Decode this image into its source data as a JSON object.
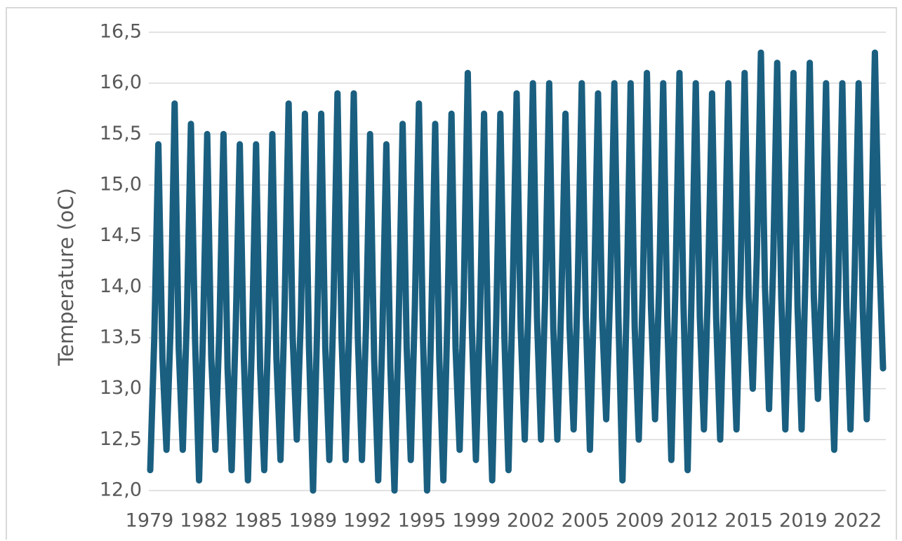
{
  "chart_data": {
    "type": "line",
    "title": "",
    "xlabel": "",
    "ylabel": "Temperature (oC)",
    "ylim": [
      12.0,
      16.5
    ],
    "y_ticks": [
      "12,0",
      "12,5",
      "13,0",
      "13,5",
      "14,0",
      "14,5",
      "15,0",
      "15,5",
      "16,0",
      "16,5"
    ],
    "x_tick_labels": [
      "1979",
      "1982",
      "1985",
      "1989",
      "1992",
      "1995",
      "1999",
      "2002",
      "2005",
      "2009",
      "2012",
      "2015",
      "2019",
      "2022"
    ],
    "grid": true,
    "legend": "none",
    "line_color": "#1a5f80",
    "series": [
      {
        "x": [
          "1979-01",
          "1979-04",
          "1979-07",
          "1979-10",
          "1980-01",
          "1980-04",
          "1980-07",
          "1980-10",
          "1981-01",
          "1981-04",
          "1981-07",
          "1981-10",
          "1982-01",
          "1982-04",
          "1982-07",
          "1982-10",
          "1983-01",
          "1983-04",
          "1983-07",
          "1983-10",
          "1984-01",
          "1984-04",
          "1984-07",
          "1984-10",
          "1985-01",
          "1985-04",
          "1985-07",
          "1985-10",
          "1986-01",
          "1986-04",
          "1986-07",
          "1986-10",
          "1987-01",
          "1987-04",
          "1987-07",
          "1987-10",
          "1988-01",
          "1988-04",
          "1988-07",
          "1988-10",
          "1989-01",
          "1989-04",
          "1989-07",
          "1989-10",
          "1990-01",
          "1990-04",
          "1990-07",
          "1990-10",
          "1991-01",
          "1991-04",
          "1991-07",
          "1991-10",
          "1992-01",
          "1992-04",
          "1992-07",
          "1992-10",
          "1993-01",
          "1993-04",
          "1993-07",
          "1993-10",
          "1994-01",
          "1994-04",
          "1994-07",
          "1994-10",
          "1995-01",
          "1995-04",
          "1995-07",
          "1995-10",
          "1996-01",
          "1996-04",
          "1996-07",
          "1996-10",
          "1997-01",
          "1997-04",
          "1997-07",
          "1997-10",
          "1998-01",
          "1998-04",
          "1998-07",
          "1998-10",
          "1999-01",
          "1999-04",
          "1999-07",
          "1999-10",
          "2000-01",
          "2000-04",
          "2000-07",
          "2000-10",
          "2001-01",
          "2001-04",
          "2001-07",
          "2001-10",
          "2002-01",
          "2002-04",
          "2002-07",
          "2002-10",
          "2003-01",
          "2003-04",
          "2003-07",
          "2003-10",
          "2004-01",
          "2004-04",
          "2004-07",
          "2004-10",
          "2005-01",
          "2005-04",
          "2005-07",
          "2005-10",
          "2006-01",
          "2006-04",
          "2006-07",
          "2006-10",
          "2007-01",
          "2007-04",
          "2007-07",
          "2007-10",
          "2008-01",
          "2008-04",
          "2008-07",
          "2008-10",
          "2009-01",
          "2009-04",
          "2009-07",
          "2009-10",
          "2010-01",
          "2010-04",
          "2010-07",
          "2010-10",
          "2011-01",
          "2011-04",
          "2011-07",
          "2011-10",
          "2012-01",
          "2012-04",
          "2012-07",
          "2012-10",
          "2013-01",
          "2013-04",
          "2013-07",
          "2013-10",
          "2014-01",
          "2014-04",
          "2014-07",
          "2014-10",
          "2015-01",
          "2015-04",
          "2015-07",
          "2015-10",
          "2016-01",
          "2016-04",
          "2016-07",
          "2016-10",
          "2017-01",
          "2017-04",
          "2017-07",
          "2017-10",
          "2018-01",
          "2018-04",
          "2018-07",
          "2018-10",
          "2019-01",
          "2019-04",
          "2019-07",
          "2019-10",
          "2020-01",
          "2020-04",
          "2020-07",
          "2020-10",
          "2021-01",
          "2021-04",
          "2021-07",
          "2021-10",
          "2022-01",
          "2022-04",
          "2022-07",
          "2022-10",
          "2023-01",
          "2023-04",
          "2023-07",
          "2023-10",
          "2024-01"
        ],
        "values": [
          12.2,
          13.5,
          15.4,
          13.3,
          12.4,
          13.6,
          15.8,
          13.4,
          12.4,
          13.7,
          15.6,
          13.5,
          12.1,
          13.6,
          15.5,
          13.3,
          12.4,
          13.6,
          15.5,
          13.2,
          12.2,
          13.6,
          15.4,
          13.3,
          12.1,
          13.5,
          15.4,
          13.2,
          12.2,
          13.6,
          15.5,
          13.3,
          12.3,
          13.8,
          15.8,
          13.5,
          12.5,
          13.7,
          15.7,
          13.4,
          12.0,
          13.6,
          15.7,
          13.4,
          12.3,
          13.8,
          15.9,
          13.5,
          12.3,
          13.8,
          15.9,
          13.5,
          12.3,
          13.6,
          15.5,
          13.3,
          12.1,
          13.5,
          15.4,
          13.2,
          12.0,
          13.6,
          15.6,
          13.4,
          12.3,
          13.8,
          15.8,
          13.5,
          12.0,
          13.6,
          15.6,
          13.3,
          12.1,
          13.7,
          15.7,
          13.4,
          12.4,
          13.9,
          16.1,
          13.6,
          12.3,
          13.7,
          15.7,
          13.4,
          12.1,
          13.7,
          15.7,
          13.5,
          12.2,
          13.9,
          15.9,
          13.6,
          12.5,
          14.0,
          16.0,
          13.7,
          12.5,
          13.9,
          16.0,
          13.6,
          12.5,
          13.9,
          15.7,
          13.6,
          12.6,
          14.0,
          16.0,
          13.7,
          12.4,
          13.9,
          15.9,
          13.7,
          12.7,
          14.0,
          16.0,
          13.7,
          12.1,
          13.8,
          16.0,
          13.6,
          12.5,
          14.0,
          16.1,
          13.8,
          12.7,
          14.0,
          16.0,
          13.7,
          12.3,
          14.0,
          16.1,
          13.8,
          12.2,
          14.0,
          16.0,
          13.7,
          12.6,
          14.0,
          15.9,
          13.7,
          12.5,
          14.0,
          16.0,
          13.8,
          12.6,
          14.1,
          16.1,
          13.9,
          13.0,
          14.3,
          16.3,
          14.0,
          12.8,
          14.2,
          16.2,
          13.9,
          12.6,
          14.1,
          16.1,
          13.8,
          12.6,
          14.2,
          16.2,
          13.9,
          12.9,
          14.1,
          16.0,
          13.6,
          12.4,
          14.0,
          16.0,
          13.8,
          12.6,
          14.1,
          16.0,
          13.8,
          12.7,
          14.3,
          16.3,
          14.4,
          13.2
        ]
      }
    ]
  }
}
